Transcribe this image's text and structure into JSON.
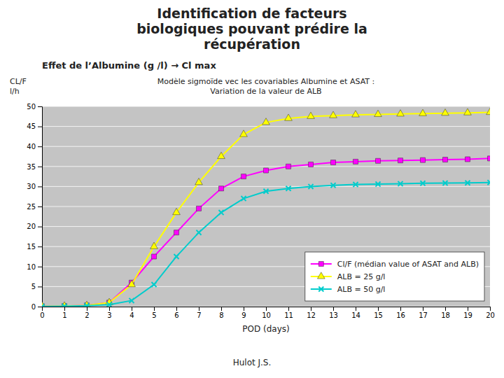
{
  "chart_data": {
    "type": "line",
    "title": "Identification de facteurs\nbiologiques pouvant prédire la\nrécupération",
    "subtitle": "Effet de l’Albumine (g /l) → Cl max",
    "annotations": [
      "Modèle sigmoïde vec les covariables Albumine et ASAT :",
      "Variation de la valeur de ALB"
    ],
    "ylabel": "CL/F\nl/h",
    "xlabel": "POD (days)",
    "footnote": "Hulot J.S.",
    "x": [
      0,
      1,
      2,
      3,
      4,
      5,
      6,
      7,
      8,
      9,
      10,
      11,
      12,
      13,
      14,
      15,
      16,
      17,
      18,
      19,
      20
    ],
    "xlim": [
      0,
      20
    ],
    "ylim": [
      0,
      50
    ],
    "xticks": [
      0,
      1,
      2,
      3,
      4,
      5,
      6,
      7,
      8,
      9,
      10,
      11,
      12,
      13,
      14,
      15,
      16,
      17,
      18,
      19,
      20
    ],
    "yticks": [
      0,
      5,
      10,
      15,
      20,
      25,
      30,
      35,
      40,
      45,
      50
    ],
    "grid": true,
    "legend": "lower right",
    "series": [
      {
        "name": "Cl/F (médian value of ASAT and ALB)",
        "color": "#ff00ff",
        "marker": "square",
        "values": [
          0.1,
          0.15,
          0.3,
          1.0,
          6.0,
          12.5,
          18.5,
          24.5,
          29.5,
          32.5,
          34.0,
          35.0,
          35.5,
          36.0,
          36.2,
          36.4,
          36.5,
          36.6,
          36.7,
          36.8,
          37.0
        ]
      },
      {
        "name": "ALB = 25 g/l",
        "color": "#ffff00",
        "marker": "triangle",
        "values": [
          0.1,
          0.15,
          0.3,
          1.0,
          5.5,
          15.0,
          23.5,
          31.0,
          37.5,
          43.0,
          46.0,
          47.0,
          47.5,
          47.7,
          47.9,
          48.0,
          48.1,
          48.2,
          48.3,
          48.4,
          48.5
        ]
      },
      {
        "name": "ALB = 50 g/l",
        "color": "#00cccc",
        "marker": "x",
        "values": [
          0.05,
          0.1,
          0.2,
          0.5,
          1.5,
          5.5,
          12.5,
          18.5,
          23.5,
          27.0,
          28.8,
          29.5,
          30.0,
          30.3,
          30.5,
          30.6,
          30.7,
          30.8,
          30.85,
          30.9,
          31.0
        ]
      }
    ]
  }
}
